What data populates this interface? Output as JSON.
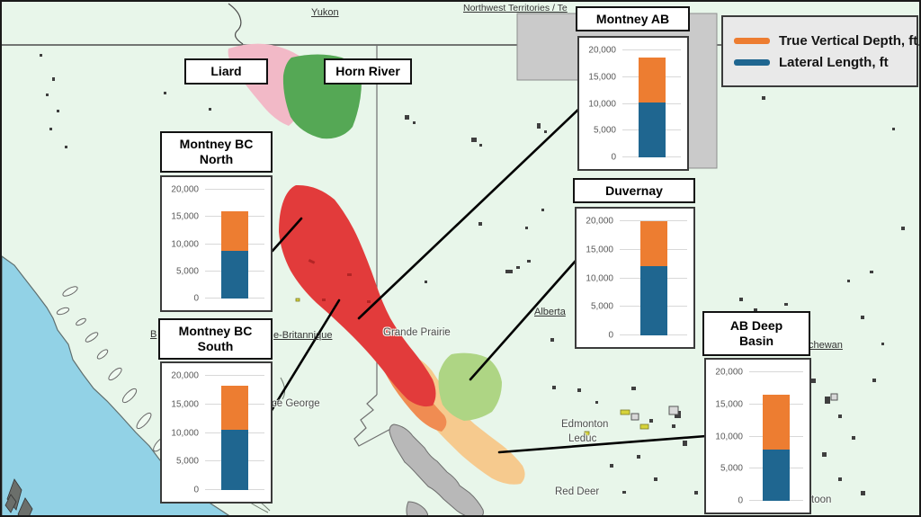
{
  "map": {
    "region_labels": {
      "yukon": "Yukon",
      "nwt_fragment": "Northwest Territories / Te",
      "bc_fragment_left": "B",
      "bc_fragment_right": "e-Britannique",
      "alberta": "Alberta",
      "saskatchewan_fragment": "chewan"
    },
    "city_labels": {
      "grande_prairie": "Grande Prairie",
      "prince_george_fragment": "ce George",
      "edmonton": "Edmonton",
      "leduc": "Leduc",
      "red_deer": "Red Deer",
      "saskatoon_fragment": "toon"
    },
    "play_labels": {
      "liard": "Liard",
      "horn_river": "Horn River"
    },
    "colors": {
      "background": "#e8f6ea",
      "ocean": "#92d2e6",
      "liard_play": "#f2b9c7",
      "horn_river_play": "#55a855",
      "montney_bc_play": "#e23b3b",
      "montney_ab_play": "#f08c52",
      "ab_deep_basin_play": "#f6ca8e",
      "duvernay_play": "#aed584",
      "mountains": "#b8b8b8",
      "nwt_area": "#cacaca"
    }
  },
  "legend": {
    "items": [
      {
        "label": "True Vertical Depth, ft",
        "color": "#ed7d31"
      },
      {
        "label": "Lateral Length, ft",
        "color": "#1f6690"
      }
    ]
  },
  "chart_data": [
    {
      "type": "bar",
      "stacked": true,
      "title": "Montney AB",
      "title_lines": [
        "Montney AB"
      ],
      "ylim": [
        0,
        20000
      ],
      "yticks": [
        0,
        5000,
        10000,
        15000,
        20000
      ],
      "series": [
        {
          "name": "Lateral Length, ft",
          "color": "#1f6690",
          "value": 10200
        },
        {
          "name": "True Vertical Depth, ft",
          "color": "#ed7d31",
          "value": 8400
        }
      ]
    },
    {
      "type": "bar",
      "stacked": true,
      "title": "Montney BC North",
      "title_lines": [
        "Montney BC",
        "North"
      ],
      "ylim": [
        0,
        20000
      ],
      "yticks": [
        0,
        5000,
        10000,
        15000,
        20000
      ],
      "series": [
        {
          "name": "Lateral Length, ft",
          "color": "#1f6690",
          "value": 8800
        },
        {
          "name": "True Vertical Depth, ft",
          "color": "#ed7d31",
          "value": 7200
        }
      ]
    },
    {
      "type": "bar",
      "stacked": true,
      "title": "Montney BC South",
      "title_lines": [
        "Montney BC",
        "South"
      ],
      "ylim": [
        0,
        20000
      ],
      "yticks": [
        0,
        5000,
        10000,
        15000,
        20000
      ],
      "series": [
        {
          "name": "Lateral Length, ft",
          "color": "#1f6690",
          "value": 10500
        },
        {
          "name": "True Vertical Depth, ft",
          "color": "#ed7d31",
          "value": 7800
        }
      ]
    },
    {
      "type": "bar",
      "stacked": true,
      "title": "Duvernay",
      "title_lines": [
        "Duvernay"
      ],
      "ylim": [
        0,
        20000
      ],
      "yticks": [
        0,
        5000,
        10000,
        15000,
        20000
      ],
      "series": [
        {
          "name": "Lateral Length, ft",
          "color": "#1f6690",
          "value": 12200
        },
        {
          "name": "True Vertical Depth, ft",
          "color": "#ed7d31",
          "value": 7800
        }
      ]
    },
    {
      "type": "bar",
      "stacked": true,
      "title": "AB Deep Basin",
      "title_lines": [
        "AB Deep",
        "Basin"
      ],
      "ylim": [
        0,
        20000
      ],
      "yticks": [
        0,
        5000,
        10000,
        15000,
        20000
      ],
      "series": [
        {
          "name": "Lateral Length, ft",
          "color": "#1f6690",
          "value": 8000
        },
        {
          "name": "True Vertical Depth, ft",
          "color": "#ed7d31",
          "value": 8500
        }
      ]
    }
  ]
}
